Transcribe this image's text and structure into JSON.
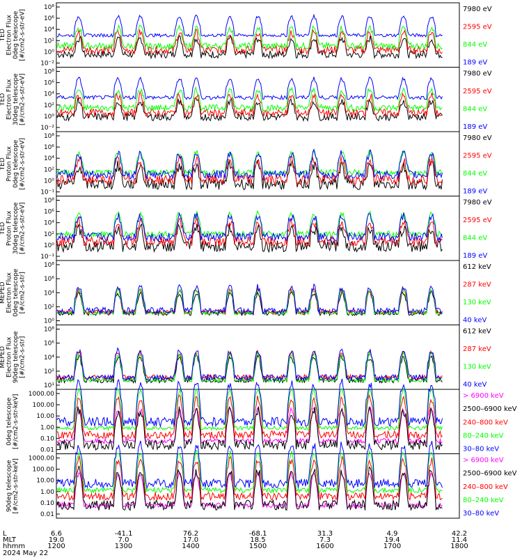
{
  "colors": {
    "blue": "#0000ff",
    "red": "#ff0000",
    "green": "#00ff00",
    "black": "#000000",
    "magenta": "#ff00ff"
  },
  "chart_data": [
    {
      "type": "line",
      "ylabel": [
        "TED",
        "Electron Flux",
        "0deg telescope",
        "[#/cm2-s-str-eV]"
      ],
      "ytick_labels": [
        "10⁸",
        "10⁶",
        "10⁴",
        "10²",
        "10⁰",
        "10⁻²"
      ],
      "ylim": [
        0.01,
        100000000
      ],
      "yscale": "log",
      "series": [
        {
          "name": "7980 eV",
          "color": "black",
          "level": 1,
          "noise": 0.6
        },
        {
          "name": "2595 eV",
          "color": "red",
          "level": 5,
          "noise": 0.6
        },
        {
          "name": "844 eV",
          "color": "green",
          "level": 20,
          "noise": 0.5
        },
        {
          "name": "189 eV",
          "color": "blue",
          "level": 900,
          "noise": 0.25
        }
      ]
    },
    {
      "type": "line",
      "ylabel": [
        "TED",
        "Electron Flux",
        "30deg telescope",
        "[#/cm2-s-str-eV]"
      ],
      "ytick_labels": [
        "10⁸",
        "10⁶",
        "10⁴",
        "10²",
        "10⁰",
        "10⁻²"
      ],
      "ylim": [
        0.01,
        100000000
      ],
      "yscale": "log",
      "series": [
        {
          "name": "7980 eV",
          "color": "black",
          "level": 2,
          "noise": 0.6
        },
        {
          "name": "2595 eV",
          "color": "red",
          "level": 8,
          "noise": 0.6
        },
        {
          "name": "844 eV",
          "color": "green",
          "level": 50,
          "noise": 0.5
        },
        {
          "name": "189 eV",
          "color": "blue",
          "level": 2000,
          "noise": 0.3
        }
      ]
    },
    {
      "type": "line",
      "ylabel": [
        "TED",
        "Proton Flux",
        "0deg telescope",
        "[#/cm2-s-str-eV]"
      ],
      "ytick_labels": [
        "10⁸",
        "10⁶",
        "10⁴",
        "10²",
        "10⁰",
        "10⁻¹"
      ],
      "ylim": [
        0.1,
        100000000
      ],
      "yscale": "log",
      "series": [
        {
          "name": "7980 eV",
          "color": "black",
          "level": 5,
          "noise": 0.8
        },
        {
          "name": "2595 eV",
          "color": "red",
          "level": 20,
          "noise": 0.7
        },
        {
          "name": "844 eV",
          "color": "green",
          "level": 200,
          "noise": 0.4
        },
        {
          "name": "189 eV",
          "color": "blue",
          "level": 100,
          "noise": 0.6
        }
      ]
    },
    {
      "type": "line",
      "ylabel": [
        "TED",
        "Proton Flux",
        "30deg telescope",
        "[#/cm2-s-str-eV]"
      ],
      "ytick_labels": [
        "10⁸",
        "10⁶",
        "10⁴",
        "10²",
        "10⁰",
        "10⁻¹"
      ],
      "ylim": [
        0.1,
        100000000
      ],
      "yscale": "log",
      "series": [
        {
          "name": "7980 eV",
          "color": "black",
          "level": 10,
          "noise": 0.8
        },
        {
          "name": "2595 eV",
          "color": "red",
          "level": 50,
          "noise": 0.7
        },
        {
          "name": "844 eV",
          "color": "green",
          "level": 500,
          "noise": 0.4
        },
        {
          "name": "189 eV",
          "color": "blue",
          "level": 200,
          "noise": 0.6
        }
      ]
    },
    {
      "type": "line",
      "ylabel": [
        "MEPED",
        "Electron Flux",
        "0deg telescope",
        "[#/cm2-s-str]"
      ],
      "ytick_labels": [
        "10⁸",
        "10⁶",
        "10⁴",
        "10²",
        "10⁰"
      ],
      "ylim": [
        1,
        100000000
      ],
      "yscale": "log",
      "series": [
        {
          "name": "612 keV",
          "color": "black",
          "level": 30,
          "noise": 0.3
        },
        {
          "name": "287 keV",
          "color": "red",
          "level": 40,
          "noise": 0.3
        },
        {
          "name": "130 keV",
          "color": "green",
          "level": 30,
          "noise": 0.2
        },
        {
          "name": "40 keV",
          "color": "blue",
          "level": 60,
          "noise": 0.4
        }
      ]
    },
    {
      "type": "line",
      "ylabel": [
        "MEPED",
        "Electron Flux",
        "90deg telescope",
        "[#/cm2-s-str]"
      ],
      "ytick_labels": [
        "10⁸",
        "10⁶",
        "10⁴",
        "10²",
        "10¹"
      ],
      "ylim": [
        10,
        100000000
      ],
      "yscale": "log",
      "series": [
        {
          "name": "612 keV",
          "color": "black",
          "level": 100,
          "noise": 0.3
        },
        {
          "name": "287 keV",
          "color": "red",
          "level": 200,
          "noise": 0.3
        },
        {
          "name": "130 keV",
          "color": "green",
          "level": 100,
          "noise": 0.2
        },
        {
          "name": "40 keV",
          "color": "blue",
          "level": 200,
          "noise": 0.3
        }
      ]
    },
    {
      "type": "scatter",
      "ylabel": [
        "0deg telescope",
        "[#/cm2-s-str-keV]"
      ],
      "ytick_labels": [
        "1000.00",
        "100.00",
        "10.00",
        "1.00",
        "0.10",
        "0.01"
      ],
      "ylim": [
        0.01,
        1000
      ],
      "yscale": "log",
      "series": [
        {
          "name": "> 6900 keV",
          "color": "magenta",
          "level": 0.1,
          "noise": 0.2
        },
        {
          "name": "2500–6900 keV",
          "color": "black",
          "level": 0.05,
          "noise": 0.4
        },
        {
          "name": "240–800 keV",
          "color": "red",
          "level": 0.3,
          "noise": 0.3
        },
        {
          "name": "80–240 keV",
          "color": "green",
          "level": 1,
          "noise": 0.15
        },
        {
          "name": "30–80 keV",
          "color": "blue",
          "level": 3,
          "noise": 0.35
        }
      ]
    },
    {
      "type": "scatter",
      "ylabel": [
        "90deg telescope",
        "[#/cm2-s-str-keV]"
      ],
      "ytick_labels": [
        "1000.00",
        "100.00",
        "10.00",
        "1.00",
        "0.10",
        "0.01"
      ],
      "ylim": [
        0.01,
        1000
      ],
      "yscale": "log",
      "series": [
        {
          "name": "> 6900 keV",
          "color": "magenta",
          "level": 0.1,
          "noise": 0.2
        },
        {
          "name": "2500–6900 keV",
          "color": "black",
          "level": 0.1,
          "noise": 0.4
        },
        {
          "name": "240–800 keV",
          "color": "red",
          "level": 0.5,
          "noise": 0.3
        },
        {
          "name": "80–240 keV",
          "color": "green",
          "level": 1.5,
          "noise": 0.2
        },
        {
          "name": "30–80 keV",
          "color": "blue",
          "level": 5,
          "noise": 0.35
        }
      ]
    }
  ],
  "x_axis": {
    "row_labels": [
      "L",
      "MLT",
      "hhmm",
      "2024 May 22"
    ],
    "ticks": [
      {
        "l": "6.6",
        "mlt": "19.0",
        "hhmm": "1200"
      },
      {
        "l": "-41.1",
        "mlt": "7.0",
        "hhmm": "1300"
      },
      {
        "l": "76.2",
        "mlt": "17.0",
        "hhmm": "1400"
      },
      {
        "l": "-68.1",
        "mlt": "18.5",
        "hhmm": "1500"
      },
      {
        "l": "31.3",
        "mlt": "7.3",
        "hhmm": "1600"
      },
      {
        "l": "4.9",
        "mlt": "19.4",
        "hhmm": "1700"
      },
      {
        "l": "42.2",
        "mlt": "11.4",
        "hhmm": "1800"
      }
    ]
  },
  "passes_hhmm": [
    "1220",
    "1255",
    "1315",
    "1350",
    "1405",
    "1435",
    "1500",
    "1530",
    "1550",
    "1615",
    "1640",
    "1710",
    "1735",
    "1750"
  ],
  "data_end_hhmm": "1745"
}
